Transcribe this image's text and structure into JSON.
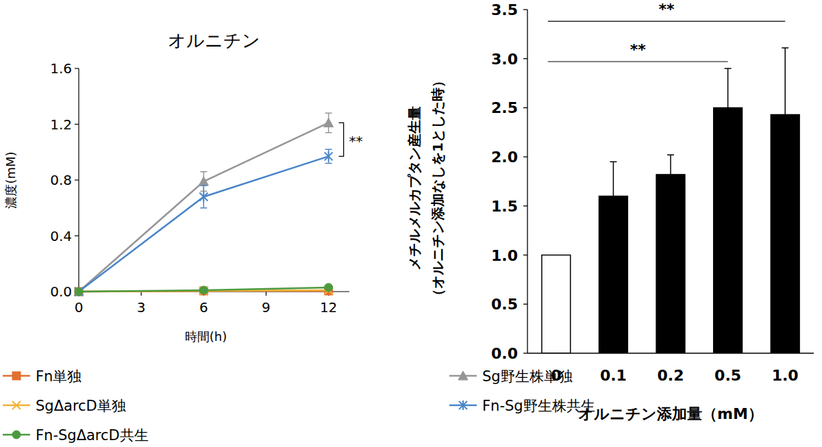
{
  "chart_data": [
    {
      "type": "line",
      "title": "オルニチン",
      "xlabel": "時間(h)",
      "ylabel": "濃度(mM)",
      "x": [
        0,
        6,
        12
      ],
      "xlim": [
        0,
        13
      ],
      "xticks": [
        0,
        3,
        6,
        9,
        12
      ],
      "ylim": [
        0,
        1.6
      ],
      "yticks": [
        {
          "value": 0,
          "label": "0.0"
        },
        0.4,
        0.8,
        1.2,
        1.6
      ],
      "grid": false,
      "legend": "bottom",
      "series": [
        {
          "name": "Fn単独",
          "color": "#e2712f",
          "marker": "square",
          "line_style": "solid",
          "values": [
            0,
            0.005,
            0.005
          ],
          "errors": [
            0,
            0,
            0
          ]
        },
        {
          "name": "Sg野生株単独",
          "color": "#969696",
          "marker": "triangle",
          "line_style": "solid",
          "values": [
            0,
            0.79,
            1.21
          ],
          "errors": [
            0,
            0.07,
            0.07
          ]
        },
        {
          "name": "SgΔarcD単独",
          "color": "#f2b134",
          "marker": "x",
          "line_style": "solid",
          "values": [
            0,
            0.005,
            0.01
          ],
          "errors": [
            0,
            0,
            0
          ]
        },
        {
          "name": "Fn-Sg野生株共生",
          "color": "#4a86c8",
          "marker": "asterisk",
          "line_style": "solid",
          "values": [
            0,
            0.68,
            0.97
          ],
          "errors": [
            0,
            0.08,
            0.05
          ]
        },
        {
          "name": "Fn-SgΔarcD共生",
          "color": "#4c9a3f",
          "marker": "circle",
          "line_style": "solid",
          "values": [
            0,
            0.01,
            0.03
          ],
          "errors": [
            0,
            0,
            0
          ]
        }
      ],
      "annotations": [
        {
          "text": "**",
          "x": 12,
          "y1": 0.97,
          "y2": 1.21
        }
      ]
    },
    {
      "type": "bar",
      "xlabel": "オルニチン添加量（mM）",
      "ylabel": [
        "メチルメルカプタン産生量",
        "（オルニチン添加なしを1とした時）"
      ],
      "categories": [
        "0",
        "0.1",
        "0.2",
        "0.5",
        "1.0"
      ],
      "values": [
        1.0,
        1.6,
        1.82,
        2.5,
        2.43
      ],
      "errors": [
        0,
        0.35,
        0.2,
        0.4,
        0.68
      ],
      "colors": [
        "#ffffff",
        "#000000",
        "#000000",
        "#000000",
        "#000000"
      ],
      "ylim": [
        0,
        3.5
      ],
      "yticks": [
        {
          "value": 0,
          "label": "0.0"
        },
        0.5,
        {
          "value": 1,
          "label": "1.0"
        },
        1.5,
        {
          "value": 2,
          "label": "2.0"
        },
        2.5,
        {
          "value": 3,
          "label": "3.0"
        },
        3.5
      ],
      "grid": false,
      "annotations": [
        {
          "text": "**",
          "from": 0,
          "to": 3,
          "y": 2.97
        },
        {
          "text": "**",
          "from": 0,
          "to": 4,
          "y": 3.38
        }
      ]
    }
  ]
}
